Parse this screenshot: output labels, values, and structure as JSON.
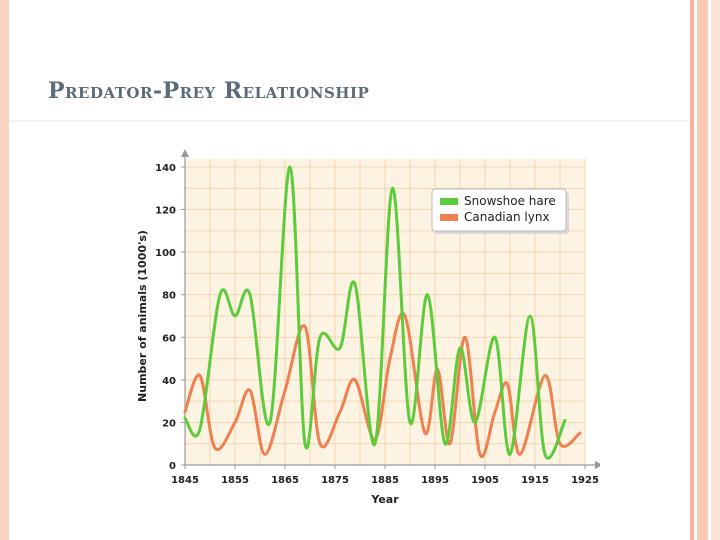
{
  "slide": {
    "title": "Predator-Prey Relationship"
  },
  "chart_data": {
    "type": "line",
    "title": "",
    "xlabel": "Year",
    "ylabel": "Number of animals (1000's)",
    "xlim": [
      1845,
      1925
    ],
    "ylim": [
      0,
      140
    ],
    "x_ticks": [
      1845,
      1855,
      1865,
      1875,
      1885,
      1895,
      1905,
      1915,
      1925
    ],
    "y_ticks": [
      0,
      20,
      40,
      60,
      80,
      100,
      120,
      140
    ],
    "grid": true,
    "legend_position": "top-right",
    "series": [
      {
        "name": "Snowshoe hare",
        "color": "#5ccc3c",
        "x": [
          1845,
          1848,
          1852,
          1855,
          1858,
          1862,
          1866,
          1869,
          1872,
          1876,
          1879,
          1883,
          1886.5,
          1890,
          1893.5,
          1897,
          1900,
          1903,
          1907,
          1910,
          1914,
          1917,
          1921
        ],
        "y": [
          22,
          17,
          80,
          70,
          80,
          20,
          140,
          10,
          60,
          55,
          85,
          10,
          130,
          20,
          80,
          10,
          55,
          20,
          60,
          5,
          70,
          5,
          21
        ]
      },
      {
        "name": "Canadian lynx",
        "color": "#ef8050",
        "x": [
          1845,
          1848,
          1851,
          1855,
          1858,
          1861,
          1865,
          1869,
          1872,
          1876,
          1879,
          1883,
          1886,
          1889,
          1893,
          1895.5,
          1898,
          1901,
          1904,
          1907,
          1909.5,
          1912,
          1917,
          1920,
          1924
        ],
        "y": [
          25,
          42,
          8,
          20,
          35,
          5,
          35,
          65,
          10,
          25,
          40,
          12,
          50,
          70,
          15,
          45,
          10,
          60,
          5,
          25,
          38,
          5,
          42,
          10,
          15
        ]
      }
    ]
  }
}
